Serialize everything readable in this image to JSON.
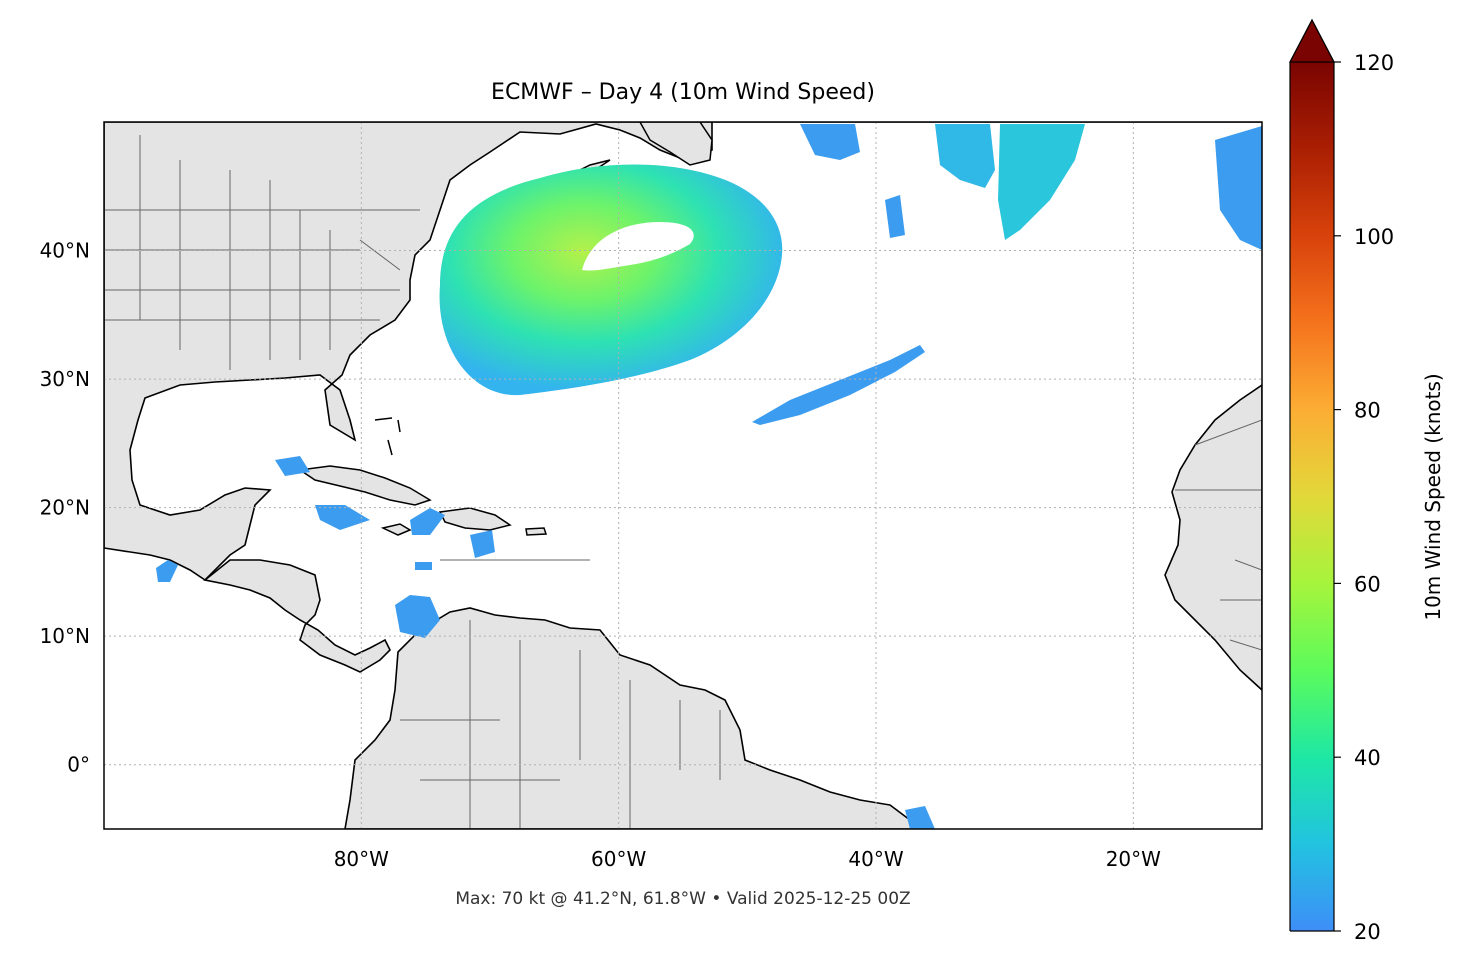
{
  "title": "ECMWF – Day 4 (10m Wind Speed)",
  "footer": "Max: 70 kt @ 41.2°N, 61.8°W • Valid 2025-12-25 00Z",
  "map": {
    "lon_range": [
      -100,
      -10
    ],
    "lat_range": [
      -5,
      50
    ],
    "lat_ticks": [
      {
        "value": 40,
        "label": "40°N"
      },
      {
        "value": 30,
        "label": "30°N"
      },
      {
        "value": 20,
        "label": "20°N"
      },
      {
        "value": 10,
        "label": "10°N"
      },
      {
        "value": 0,
        "label": "0°"
      }
    ],
    "lon_ticks": [
      {
        "value": -80,
        "label": "80°W"
      },
      {
        "value": -60,
        "label": "60°W"
      },
      {
        "value": -40,
        "label": "40°W"
      },
      {
        "value": -20,
        "label": "20°W"
      }
    ],
    "gridlines": "dotted",
    "land_color": "#e4e4e4",
    "coastline_color": "#000000",
    "border_color": "#666666",
    "max_wind": {
      "value_kt": 70,
      "lat": 41.2,
      "lon": -61.8
    }
  },
  "colorbar": {
    "label": "10m Wind Speed (knots)",
    "min": 20,
    "max": 120,
    "extend": "max",
    "colormap": "turbo",
    "ticks": [
      {
        "value": 20,
        "label": "20"
      },
      {
        "value": 40,
        "label": "40"
      },
      {
        "value": 60,
        "label": "60"
      },
      {
        "value": 80,
        "label": "80"
      },
      {
        "value": 100,
        "label": "100"
      },
      {
        "value": 120,
        "label": "120"
      }
    ]
  }
}
